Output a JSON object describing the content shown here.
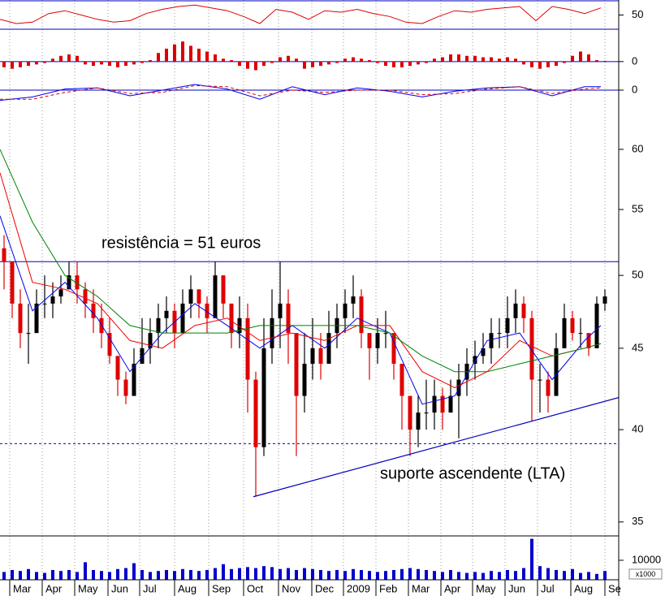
{
  "chart_data": [
    {
      "type": "line",
      "ylim": [
        28.9,
        71.1
      ],
      "yticks": [
        50
      ],
      "ref_lines": [
        {
          "value": 30,
          "color": "#0000c0"
        },
        {
          "value": 70,
          "color": "#0000c0"
        }
      ],
      "series": [
        {
          "color": "#dd0000",
          "x": [
            0,
            2,
            4,
            6,
            8,
            10,
            12,
            14,
            16,
            18,
            20,
            22,
            24,
            26,
            28,
            30,
            32,
            34,
            36,
            38,
            40,
            42,
            44,
            46,
            48,
            50,
            52,
            54,
            56,
            58,
            60,
            62,
            64,
            66,
            68,
            70,
            72,
            74
          ],
          "values": [
            44,
            38,
            40,
            52,
            56,
            50,
            44,
            40,
            42,
            52,
            58,
            62,
            64,
            60,
            56,
            48,
            38,
            58,
            54,
            44,
            56,
            54,
            58,
            52,
            48,
            40,
            38,
            48,
            56,
            54,
            58,
            60,
            62,
            42,
            62,
            58,
            52,
            60
          ]
        }
      ]
    },
    {
      "type": "bar",
      "ylim": [
        -1.2,
        2.2
      ],
      "yticks": [
        0
      ],
      "color": "#dd0000",
      "ref_lines": [
        {
          "value": 0,
          "color": "#0000c0"
        }
      ],
      "x": [
        0.5,
        1.5,
        2.5,
        3.5,
        4.5,
        5.5,
        6.5,
        7.5,
        8.5,
        9.5,
        10.5,
        11.5,
        12.5,
        13.5,
        14.5,
        15.5,
        16.5,
        17.5,
        18.5,
        19.5,
        20.5,
        21.5,
        22.5,
        23.5,
        24.5,
        25.5,
        26.5,
        27.5,
        28.5,
        29.5,
        30.5,
        31.5,
        32.5,
        33.5,
        34.5,
        35.5,
        36.5,
        37.5,
        38.5,
        39.5,
        40.5,
        41.5,
        42.5,
        43.5,
        44.5,
        45.5,
        46.5,
        47.5,
        48.5,
        49.5,
        50.5,
        51.5,
        52.5,
        53.5,
        54.5,
        55.5,
        56.5,
        57.5,
        58.5,
        59.5,
        60.5,
        61.5,
        62.5,
        63.5,
        64.5,
        65.5,
        66.5,
        67.5,
        68.5,
        69.5,
        70.5,
        71.5,
        72.5,
        73.5,
        74.5
      ],
      "values": [
        -0.4,
        -0.5,
        -0.4,
        -0.3,
        -0.2,
        -0.1,
        0.2,
        0.4,
        0.5,
        0.4,
        -0.2,
        -0.3,
        -0.2,
        -0.3,
        -0.4,
        -0.3,
        -0.2,
        -0.1,
        0.1,
        0.6,
        0.9,
        1.2,
        1.4,
        1.1,
        0.9,
        0.7,
        0.5,
        0.2,
        0.1,
        -0.3,
        -0.5,
        -0.6,
        -0.3,
        -0.1,
        0.3,
        0.4,
        0.2,
        -0.5,
        -0.4,
        -0.3,
        -0.2,
        -0.1,
        0.2,
        0.3,
        0.2,
        0.1,
        -0.1,
        -0.3,
        -0.4,
        -0.4,
        -0.3,
        -0.2,
        -0.1,
        0.2,
        0.3,
        0.5,
        0.5,
        0.4,
        0.4,
        0.3,
        0.3,
        0.2,
        0.3,
        0.2,
        -0.2,
        -0.4,
        -0.5,
        -0.4,
        -0.3,
        -0.1,
        0.4,
        0.7,
        0.5,
        0.1,
        0.05
      ]
    },
    {
      "type": "line",
      "ylim": [
        -1.0,
        1.0
      ],
      "yticks": [
        0
      ],
      "ref_lines": [
        {
          "value": 0,
          "color": "#0000c0"
        }
      ],
      "series": [
        {
          "color": "#0000ee",
          "x": [
            0,
            4,
            8,
            12,
            16,
            20,
            24,
            28,
            32,
            36,
            40,
            44,
            48,
            52,
            56,
            60,
            64,
            68,
            72,
            74
          ],
          "values": [
            -0.9,
            -0.6,
            0.1,
            0.2,
            -0.5,
            0,
            0.5,
            0.1,
            -0.8,
            0.3,
            -0.4,
            0.2,
            -0.1,
            -0.6,
            -0.1,
            0.2,
            0.3,
            -0.5,
            0.3,
            0.3
          ]
        },
        {
          "color": "#dd0000",
          "dashed": true,
          "x": [
            0,
            4,
            8,
            12,
            16,
            20,
            24,
            28,
            32,
            36,
            40,
            44,
            48,
            52,
            56,
            60,
            64,
            68,
            72,
            74
          ],
          "values": [
            -0.8,
            -0.8,
            -0.2,
            0.2,
            -0.3,
            -0.2,
            0.4,
            0.3,
            -0.5,
            0,
            -0.2,
            0,
            0,
            -0.4,
            -0.3,
            0.1,
            0.3,
            -0.3,
            0.1,
            0.2
          ]
        }
      ]
    },
    {
      "type": "candlestick",
      "log_scale": true,
      "ylim": [
        34.3,
        64.3
      ],
      "yticks": [
        35,
        40,
        45,
        50,
        55,
        60
      ],
      "up_color": "#000000",
      "down_color": "#e00000",
      "x": [
        0.5,
        1.5,
        2.5,
        3.5,
        4.5,
        5.5,
        6.5,
        7.5,
        8.5,
        9.5,
        10.5,
        11.5,
        12.5,
        13.5,
        14.5,
        15.5,
        16.5,
        17.5,
        18.5,
        19.5,
        20.5,
        21.5,
        22.5,
        23.5,
        24.5,
        25.5,
        26.5,
        27.5,
        28.5,
        29.5,
        30.5,
        31.5,
        32.5,
        33.5,
        34.5,
        35.5,
        36.5,
        37.5,
        38.5,
        39.5,
        40.5,
        41.5,
        42.5,
        43.5,
        44.5,
        45.5,
        46.5,
        47.5,
        48.5,
        49.5,
        50.5,
        51.5,
        52.5,
        53.5,
        54.5,
        55.5,
        56.5,
        57.5,
        58.5,
        59.5,
        60.5,
        61.5,
        62.5,
        63.5,
        64.5,
        65.5,
        66.5,
        67.5,
        68.5,
        69.5,
        70.5,
        71.5,
        72.5,
        73.5,
        74.5
      ],
      "open": [
        52,
        51,
        48,
        46,
        46,
        48,
        48,
        48.5,
        49,
        50,
        49,
        48,
        47,
        46,
        44.5,
        43,
        42,
        44,
        45,
        46,
        47,
        47.5,
        46,
        48,
        49,
        48,
        47,
        50,
        48,
        46,
        47,
        43,
        39,
        45,
        47,
        48,
        46,
        42,
        44,
        45,
        44,
        46,
        47,
        48,
        48.5,
        46,
        45,
        46,
        46,
        44,
        42,
        40,
        41,
        41,
        42,
        41,
        42,
        43,
        44,
        44.5,
        45,
        46,
        46,
        47,
        48,
        47,
        43,
        43,
        42,
        45,
        47,
        46,
        46,
        45,
        48
      ],
      "high": [
        53,
        51,
        49,
        48,
        49,
        50,
        49.5,
        50,
        51,
        51,
        49.5,
        49,
        48,
        47,
        44.5,
        43.5,
        45,
        47,
        47,
        48,
        48.5,
        48,
        49,
        50,
        49,
        48.5,
        51,
        50,
        48,
        48.5,
        48,
        43.5,
        47,
        49,
        51,
        49,
        46,
        46,
        47,
        46,
        47.5,
        48,
        49,
        50,
        49,
        46,
        47,
        47.5,
        46,
        44,
        42,
        42,
        43,
        43,
        42.5,
        43,
        44,
        45,
        45.5,
        46,
        47,
        47,
        48.5,
        49,
        48.5,
        47.5,
        44,
        43.5,
        46,
        48,
        47.5,
        47,
        46,
        48.5,
        49
      ],
      "low": [
        49,
        47,
        45,
        44,
        46,
        47,
        47,
        48,
        49,
        48,
        47,
        46,
        45,
        44,
        42,
        41.5,
        42,
        44,
        44,
        45,
        46,
        45,
        46,
        47,
        47,
        46,
        47,
        47,
        45,
        45,
        41,
        36.3,
        38.5,
        44,
        45,
        44,
        38.5,
        41,
        43,
        43,
        44,
        45,
        46,
        47,
        45,
        43,
        44,
        45,
        43,
        40,
        38.5,
        39,
        40,
        40,
        40,
        41,
        39.5,
        42,
        43,
        44,
        44,
        45,
        45,
        46,
        46,
        40.5,
        41,
        41,
        42,
        45,
        45.5,
        45,
        44.5,
        45,
        47.5
      ],
      "close": [
        51,
        48,
        46,
        46,
        48,
        48,
        48.5,
        49,
        50,
        49,
        48,
        47,
        46,
        44.5,
        43,
        42,
        44,
        45,
        46,
        47,
        47.5,
        46,
        48,
        49,
        48,
        47,
        50,
        48,
        46,
        47,
        43,
        39,
        45,
        47,
        48,
        46,
        42,
        44,
        45,
        44,
        46,
        47,
        48,
        48.5,
        46,
        45,
        46,
        46,
        44,
        42,
        40,
        41,
        41,
        42,
        41,
        42,
        43,
        44,
        44.5,
        45,
        46,
        46,
        47,
        48,
        47,
        43,
        43,
        42,
        45,
        47,
        46,
        46,
        45,
        48,
        48.5
      ],
      "series": [
        {
          "color": "#0000ee",
          "x": [
            0,
            4,
            8,
            12,
            16,
            20,
            24,
            28,
            32,
            36,
            40,
            44,
            48,
            52,
            56,
            60,
            64,
            68,
            72,
            74
          ],
          "values": [
            54.5,
            47.5,
            49.5,
            47,
            43.5,
            46,
            48,
            46.5,
            45,
            46.5,
            45,
            47,
            46,
            41.5,
            42,
            45.5,
            46,
            43,
            45.5,
            46.5
          ]
        },
        {
          "color": "#ee0000",
          "x": [
            0,
            4,
            8,
            12,
            16,
            20,
            24,
            28,
            32,
            36,
            40,
            44,
            48,
            52,
            56,
            60,
            64,
            68,
            72,
            74
          ],
          "values": [
            58,
            49.5,
            49,
            48,
            45.5,
            45,
            46.5,
            47,
            45.5,
            46,
            45.5,
            46.5,
            46.5,
            43.5,
            42.5,
            43.5,
            45.5,
            44.5,
            45,
            45.3
          ]
        },
        {
          "color": "#008000",
          "x": [
            0,
            4,
            8,
            12,
            16,
            20,
            24,
            28,
            32,
            36,
            40,
            44,
            48,
            52,
            56,
            60,
            64,
            68,
            72,
            74
          ],
          "values": [
            60,
            54,
            50,
            48.5,
            46.5,
            46,
            46,
            46,
            46.5,
            46.5,
            46.5,
            46.5,
            46,
            44.5,
            43.5,
            43.5,
            44,
            44.5,
            45,
            45.3
          ]
        }
      ],
      "ref_lines": [
        {
          "value": 51,
          "color": "#0000c0"
        },
        {
          "value": 39.2,
          "color": "#0000c0",
          "dashed": true
        }
      ],
      "trendline": {
        "color": "#0000c0",
        "x": [
          31.2,
          76.2
        ],
        "values": [
          36.3,
          41.9
        ]
      },
      "annotations": [
        "resistência = 51 euros",
        "suporte ascendente (LTA)"
      ]
    },
    {
      "type": "bar",
      "ylim": [
        0,
        22500
      ],
      "yticks": [
        10000
      ],
      "color": "#0000cc",
      "unit_label": "x1000",
      "x": [
        0.5,
        1.5,
        2.5,
        3.5,
        4.5,
        5.5,
        6.5,
        7.5,
        8.5,
        9.5,
        10.5,
        11.5,
        12.5,
        13.5,
        14.5,
        15.5,
        16.5,
        17.5,
        18.5,
        19.5,
        20.5,
        21.5,
        22.5,
        23.5,
        24.5,
        25.5,
        26.5,
        27.5,
        28.5,
        29.5,
        30.5,
        31.5,
        32.5,
        33.5,
        34.5,
        35.5,
        36.5,
        37.5,
        38.5,
        39.5,
        40.5,
        41.5,
        42.5,
        43.5,
        44.5,
        45.5,
        46.5,
        47.5,
        48.5,
        49.5,
        50.5,
        51.5,
        52.5,
        53.5,
        54.5,
        55.5,
        56.5,
        57.5,
        58.5,
        59.5,
        60.5,
        61.5,
        62.5,
        63.5,
        64.5,
        65.5,
        66.5,
        67.5,
        68.5,
        69.5,
        70.5,
        71.5,
        72.5,
        73.5,
        74.5
      ],
      "values": [
        4000,
        5000,
        4500,
        5500,
        4000,
        3500,
        5000,
        4500,
        5000,
        4000,
        9000,
        5000,
        4500,
        4000,
        5500,
        6000,
        8500,
        5000,
        4000,
        4500,
        5000,
        4500,
        5500,
        5000,
        4500,
        5000,
        6000,
        8000,
        5500,
        6000,
        6500,
        6000,
        7000,
        6500,
        5500,
        6000,
        5000,
        6000,
        5500,
        5000,
        4500,
        5000,
        4500,
        5500,
        5000,
        4500,
        4000,
        4500,
        5000,
        5500,
        6000,
        5500,
        5000,
        4500,
        4000,
        5000,
        4000,
        3500,
        4000,
        3500,
        4500,
        4000,
        5000,
        4500,
        6000,
        21000,
        7000,
        6000,
        5000,
        4500,
        5500,
        3500,
        4000,
        3000,
        4500
      ],
      "xlim": [
        0,
        76.2
      ],
      "xticks": [
        {
          "value": 1.2,
          "label": "Mar"
        },
        {
          "value": 5.2,
          "label": "Apr"
        },
        {
          "value": 9.2,
          "label": "May"
        },
        {
          "value": 13.3,
          "label": "Jun"
        },
        {
          "value": 17.2,
          "label": "Jul"
        },
        {
          "value": 21.5,
          "label": "Aug"
        },
        {
          "value": 25.7,
          "label": "Sep"
        },
        {
          "value": 30,
          "label": "Oct"
        },
        {
          "value": 34.3,
          "label": "Nov"
        },
        {
          "value": 38.4,
          "label": "Dec"
        },
        {
          "value": 42.3,
          "label": "2009"
        },
        {
          "value": 46.3,
          "label": "Feb"
        },
        {
          "value": 50.3,
          "label": "Mar"
        },
        {
          "value": 54.3,
          "label": "Apr"
        },
        {
          "value": 58.2,
          "label": "May"
        },
        {
          "value": 62.2,
          "label": "Jun"
        },
        {
          "value": 66.2,
          "label": "Jul"
        },
        {
          "value": 70.3,
          "label": "Aug"
        },
        {
          "value": 74.5,
          "label": "Se"
        }
      ]
    }
  ]
}
